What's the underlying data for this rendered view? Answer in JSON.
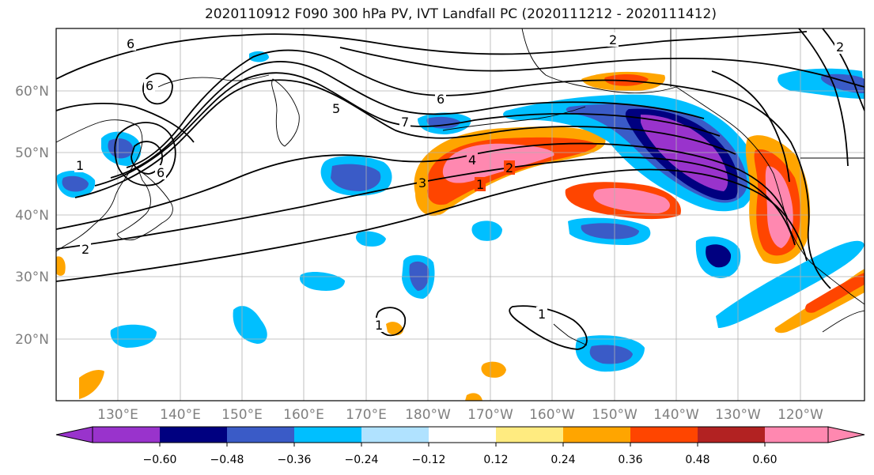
{
  "title": "2020110912 F090 300 hPa PV, IVT Landfall PC (2020111212 - 2020111412)",
  "map": {
    "lat_labels": [
      "60°N",
      "50°N",
      "40°N",
      "30°N",
      "20°N"
    ],
    "lon_labels": [
      "130°E",
      "140°E",
      "150°E",
      "160°E",
      "170°E",
      "180°W",
      "170°W",
      "160°W",
      "150°W",
      "140°W",
      "130°W",
      "120°W"
    ]
  },
  "contour_labels": [
    {
      "text": "6",
      "at": "east of Kamchatka"
    },
    {
      "text": "6",
      "at": "Sea of Okhotsk"
    },
    {
      "text": "6",
      "at": "northern Pacific near 175°E"
    },
    {
      "text": "5",
      "at": "central North Pacific"
    },
    {
      "text": "7",
      "at": "south of Aleutians"
    },
    {
      "text": "4",
      "at": "jet core near 172°W"
    },
    {
      "text": "3",
      "at": "near 180°"
    },
    {
      "text": "2",
      "at": "near 165°W"
    },
    {
      "text": "1",
      "at": "near 170°W"
    },
    {
      "text": "2",
      "at": "Gulf of Alaska top"
    },
    {
      "text": "2",
      "at": "Pacific Northwest corner"
    },
    {
      "text": "1",
      "at": "Hawaii region"
    },
    {
      "text": "1",
      "at": "near 170°E 22°N"
    },
    {
      "text": "1",
      "at": "East Asia"
    },
    {
      "text": "2",
      "at": "off Japan"
    },
    {
      "text": "6",
      "at": "Sea of Japan"
    }
  ],
  "colorbar": {
    "ticks": [
      "−0.60",
      "−0.48",
      "−0.36",
      "−0.24",
      "−0.12",
      "0.12",
      "0.24",
      "0.36",
      "0.48",
      "0.60"
    ],
    "colors": [
      "#9933cc",
      "#000080",
      "#3a5bc7",
      "#00bfff",
      "#b0e2ff",
      "#ffffff",
      "#ffeb80",
      "#ffa500",
      "#ff4500",
      "#b22222",
      "#ff88b0"
    ]
  }
}
